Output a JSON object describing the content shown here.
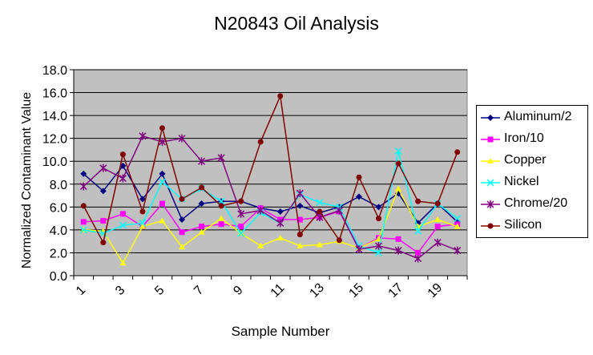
{
  "chart_data": {
    "type": "line",
    "title": "N20843 Oil Analysis",
    "xlabel": "Sample Number",
    "ylabel": "Normalized Contaminant Value",
    "ylim": [
      0,
      18
    ],
    "yticks": [
      "0.0",
      "2.0",
      "4.0",
      "6.0",
      "8.0",
      "10.0",
      "12.0",
      "14.0",
      "16.0",
      "18.0"
    ],
    "xticks": [
      "1",
      "3",
      "5",
      "7",
      "9",
      "11",
      "13",
      "15",
      "17",
      "19"
    ],
    "x": [
      1,
      2,
      3,
      4,
      5,
      6,
      7,
      8,
      9,
      10,
      11,
      12,
      13,
      14,
      15,
      16,
      17,
      18,
      19,
      20
    ],
    "grid": true,
    "legend_position": "right",
    "series": [
      {
        "name": "Aluminum/2",
        "color": "#000080",
        "marker": "diamond",
        "values": [
          8.9,
          7.4,
          9.6,
          6.7,
          8.9,
          4.9,
          6.3,
          6.5,
          6.5,
          5.9,
          5.6,
          6.1,
          5.5,
          6.0,
          6.9,
          6.0,
          7.2,
          4.6,
          6.3,
          4.7
        ]
      },
      {
        "name": "Iron/10",
        "color": "#ff00ff",
        "marker": "square",
        "values": [
          4.7,
          4.8,
          5.4,
          4.3,
          6.3,
          3.8,
          4.3,
          4.5,
          4.3,
          5.9,
          4.9,
          4.9,
          5.1,
          5.6,
          2.4,
          3.3,
          3.2,
          2.0,
          4.3,
          4.5
        ]
      },
      {
        "name": "Copper",
        "color": "#ffff00",
        "marker": "triangle",
        "values": [
          4.0,
          3.9,
          1.1,
          4.3,
          4.8,
          2.5,
          3.8,
          5.0,
          3.7,
          2.6,
          3.3,
          2.6,
          2.7,
          3.0,
          2.4,
          3.2,
          7.6,
          4.3,
          4.9,
          4.3
        ]
      },
      {
        "name": "Nickel",
        "color": "#00ffff",
        "marker": "x",
        "values": [
          4.0,
          3.7,
          4.4,
          4.6,
          8.2,
          6.7,
          7.6,
          6.5,
          3.7,
          5.5,
          4.6,
          7.1,
          6.4,
          6.0,
          2.6,
          2.0,
          10.9,
          3.9,
          6.3,
          5.0
        ]
      },
      {
        "name": "Chrome/20",
        "color": "#800080",
        "marker": "star",
        "values": [
          7.8,
          9.4,
          8.5,
          12.2,
          11.7,
          12.0,
          10.0,
          10.3,
          5.4,
          5.7,
          4.6,
          7.2,
          5.1,
          5.7,
          2.3,
          2.6,
          2.2,
          1.5,
          2.9,
          2.2
        ]
      },
      {
        "name": "Silicon",
        "color": "#800000",
        "marker": "circle",
        "values": [
          6.1,
          2.9,
          10.6,
          5.6,
          12.9,
          6.7,
          7.7,
          6.1,
          6.5,
          11.7,
          15.7,
          3.6,
          5.6,
          3.1,
          8.6,
          5.0,
          9.8,
          6.5,
          6.3,
          10.8
        ]
      }
    ]
  }
}
